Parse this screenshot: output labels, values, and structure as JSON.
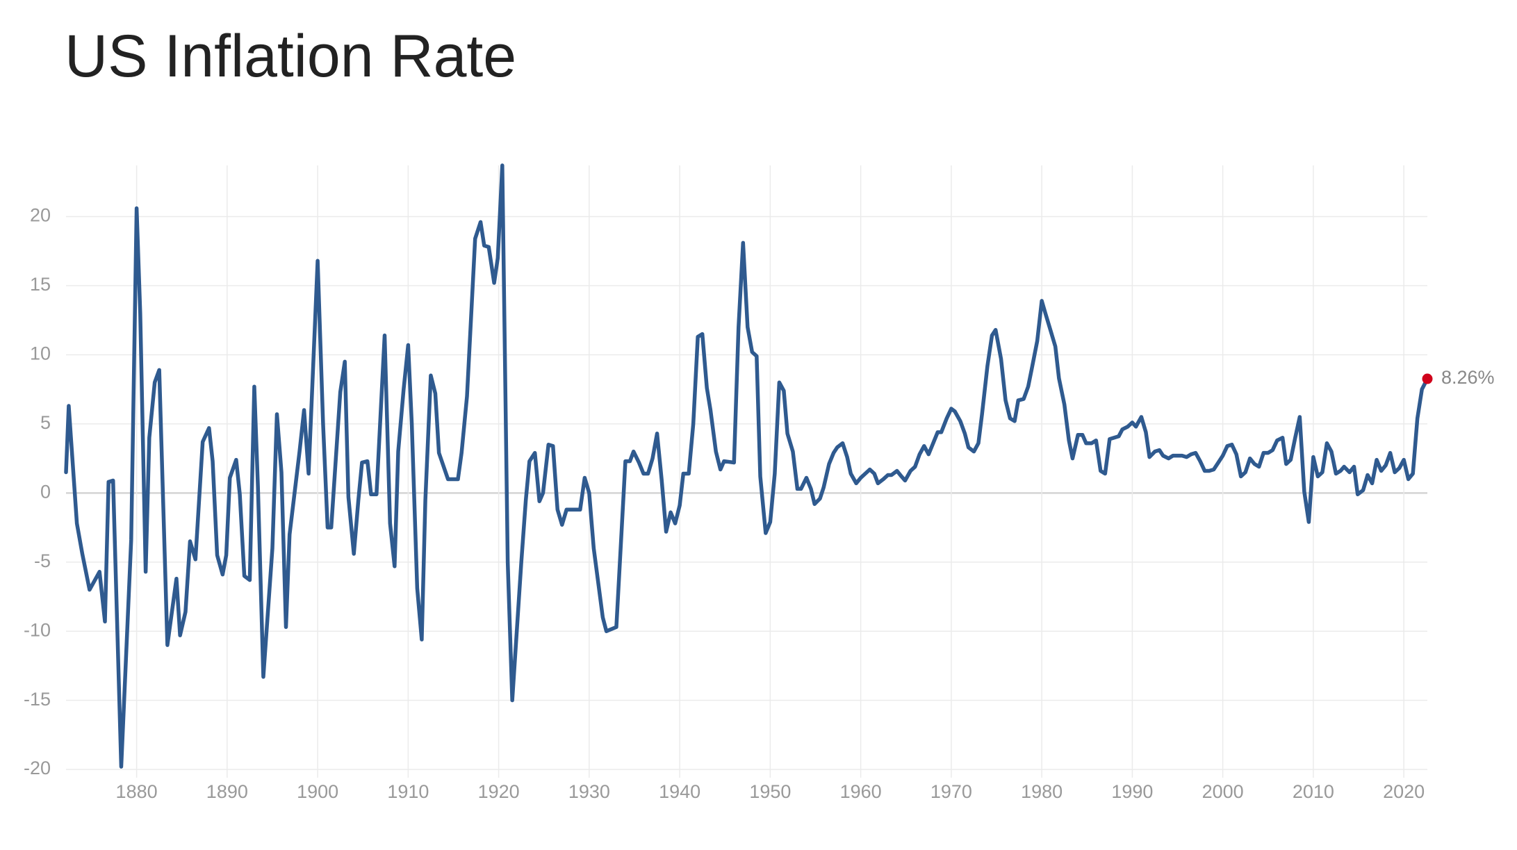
{
  "chart_data": {
    "type": "line",
    "title": "US Inflation Rate",
    "x": [
      1872.2,
      1872.5,
      1873.4,
      1874.0,
      1874.8,
      1875.9,
      1876.5,
      1876.9,
      1877.4,
      1878.3,
      1879.4,
      1880.0,
      1880.4,
      1881.0,
      1881.4,
      1882.0,
      1882.5,
      1883.4,
      1884.4,
      1884.8,
      1885.4,
      1885.9,
      1886.5,
      1887.3,
      1888.0,
      1888.4,
      1888.9,
      1889.5,
      1889.9,
      1890.3,
      1891.0,
      1891.4,
      1891.9,
      1892.5,
      1893.0,
      1893.4,
      1894.0,
      1895.0,
      1895.5,
      1896.0,
      1896.5,
      1896.9,
      1898.0,
      1898.5,
      1899.0,
      1900.0,
      1900.6,
      1901.1,
      1901.5,
      1902.5,
      1903.0,
      1903.4,
      1904.0,
      1904.5,
      1904.9,
      1905.5,
      1905.9,
      1906.5,
      1907.4,
      1908.0,
      1908.5,
      1908.9,
      1909.5,
      1910.0,
      1910.4,
      1911.0,
      1911.5,
      1911.9,
      1912.5,
      1913.0,
      1913.4,
      1914.4,
      1915.5,
      1915.9,
      1916.5,
      1917.4,
      1918.0,
      1918.4,
      1918.9,
      1919.5,
      1919.9,
      1920.4,
      1921.0,
      1921.5,
      1921.9,
      1922.5,
      1923.0,
      1923.4,
      1924.0,
      1924.5,
      1924.9,
      1925.5,
      1926.0,
      1926.5,
      1927.0,
      1927.5,
      1929.0,
      1929.5,
      1930.0,
      1930.5,
      1931.1,
      1931.5,
      1931.9,
      1933.0,
      1934.0,
      1934.5,
      1934.9,
      1935.5,
      1936.0,
      1936.5,
      1937.0,
      1937.5,
      1938.0,
      1938.5,
      1939.0,
      1939.5,
      1940.0,
      1940.4,
      1941.0,
      1941.5,
      1942.0,
      1942.5,
      1943.0,
      1943.4,
      1944.0,
      1944.5,
      1944.9,
      1946.0,
      1946.5,
      1947.0,
      1947.5,
      1948.0,
      1948.5,
      1948.9,
      1949.5,
      1950.0,
      1950.5,
      1951.0,
      1951.5,
      1951.9,
      1952.5,
      1953.0,
      1953.4,
      1954.0,
      1954.5,
      1954.9,
      1955.5,
      1955.9,
      1956.5,
      1957.0,
      1957.4,
      1958.0,
      1958.5,
      1958.9,
      1959.5,
      1960.0,
      1960.5,
      1961.0,
      1961.5,
      1961.9,
      1962.5,
      1963.0,
      1963.4,
      1964.0,
      1964.5,
      1964.9,
      1965.5,
      1966.0,
      1966.5,
      1967.0,
      1967.5,
      1968.0,
      1968.5,
      1968.9,
      1969.5,
      1970.0,
      1970.4,
      1971.0,
      1971.5,
      1971.9,
      1972.5,
      1973.0,
      1973.4,
      1974.0,
      1974.5,
      1974.9,
      1975.5,
      1976.0,
      1976.5,
      1977.0,
      1977.4,
      1978.0,
      1978.5,
      1978.9,
      1979.5,
      1980.0,
      1980.4,
      1981.0,
      1981.5,
      1981.9,
      1982.5,
      1983.0,
      1983.4,
      1984.0,
      1984.5,
      1984.9,
      1985.5,
      1986.0,
      1986.5,
      1987.0,
      1987.5,
      1988.0,
      1988.5,
      1988.9,
      1989.5,
      1990.0,
      1990.4,
      1991.0,
      1991.5,
      1991.9,
      1992.5,
      1993.0,
      1993.4,
      1994.0,
      1994.5,
      1995.5,
      1996.0,
      1996.5,
      1997.0,
      1997.5,
      1998.0,
      1998.5,
      1999.0,
      1999.5,
      2000.0,
      2000.5,
      2001.0,
      2001.5,
      2002.0,
      2002.5,
      2003.0,
      2003.5,
      2004.0,
      2004.5,
      2005.0,
      2005.5,
      2006.0,
      2006.6,
      2007.0,
      2007.5,
      2008.0,
      2008.5,
      2009.0,
      2009.5,
      2010.0,
      2010.5,
      2011.0,
      2011.5,
      2012.0,
      2012.5,
      2013.0,
      2013.4,
      2014.0,
      2014.5,
      2014.9,
      2015.5,
      2016.0,
      2016.5,
      2017.0,
      2017.5,
      2018.0,
      2018.5,
      2019.0,
      2019.5,
      2020.0,
      2020.5,
      2021.0,
      2021.5,
      2022.0,
      2022.6
    ],
    "values": [
      1.5,
      6.3,
      -2.2,
      -4.4,
      -7,
      -5.7,
      -9.3,
      0.8,
      0.9,
      -19.8,
      -3.4,
      20.6,
      13,
      -5.7,
      4,
      8,
      8.9,
      -11,
      -6.2,
      -10.3,
      -8.6,
      -3.5,
      -4.8,
      3.7,
      4.7,
      2.3,
      -4.5,
      -5.9,
      -4.5,
      1.1,
      2.4,
      -0.1,
      -6,
      -6.3,
      7.7,
      0.5,
      -13.3,
      -4,
      5.7,
      1.5,
      -9.7,
      -3,
      3,
      6,
      1.4,
      16.8,
      5,
      -2.5,
      -2.5,
      7.3,
      9.5,
      -0.3,
      -4.4,
      -0.5,
      2.2,
      2.3,
      -0.1,
      -0.1,
      11.4,
      -2.2,
      -5.3,
      3,
      7.5,
      10.7,
      5,
      -6.9,
      -10.6,
      -0.5,
      8.5,
      7.2,
      2.9,
      1,
      1,
      2.9,
      7,
      18.4,
      19.6,
      17.9,
      17.8,
      15.2,
      17,
      23.7,
      -5,
      -15,
      -11,
      -5,
      -0.5,
      2.3,
      2.9,
      -0.6,
      0,
      3.5,
      3.4,
      -1.2,
      -2.3,
      -1.2,
      -1.2,
      1.1,
      0,
      -4,
      -7,
      -9,
      -10,
      -9.7,
      2.3,
      2.3,
      3,
      2.2,
      1.4,
      1.4,
      2.5,
      4.3,
      1,
      -2.8,
      -1.4,
      -2.2,
      -0.9,
      1.4,
      1.4,
      5,
      11.3,
      11.5,
      7.6,
      6,
      3,
      1.7,
      2.3,
      2.2,
      12,
      18.1,
      12,
      10.2,
      9.9,
      1.2,
      -2.9,
      -2.1,
      1.4,
      8,
      7.4,
      4.3,
      3,
      0.3,
      0.3,
      1.1,
      0.3,
      -0.8,
      -0.4,
      0.4,
      2.1,
      2.9,
      3.3,
      3.6,
      2.6,
      1.4,
      0.7,
      1.1,
      1.4,
      1.7,
      1.4,
      0.7,
      1,
      1.3,
      1.3,
      1.6,
      1.2,
      0.9,
      1.6,
      1.9,
      2.8,
      3.4,
      2.8,
      3.6,
      4.4,
      4.4,
      5.4,
      6.1,
      5.9,
      5.2,
      4.3,
      3.3,
      3,
      3.6,
      5.7,
      9.2,
      11.4,
      11.8,
      9.7,
      6.7,
      5.4,
      5.2,
      6.7,
      6.8,
      7.7,
      9,
      11,
      13.9,
      13,
      11.7,
      10.6,
      8.3,
      6.4,
      3.8,
      2.5,
      4.2,
      4.2,
      3.6,
      3.6,
      3.8,
      1.6,
      1.4,
      3.9,
      4,
      4.1,
      4.6,
      4.8,
      5.1,
      4.8,
      5.5,
      4.4,
      2.6,
      3,
      3.1,
      2.7,
      2.5,
      2.7,
      2.7,
      2.6,
      2.8,
      2.9,
      2.3,
      1.6,
      1.6,
      1.7,
      2.2,
      2.7,
      3.4,
      3.5,
      2.8,
      1.2,
      1.5,
      2.5,
      2.1,
      1.9,
      2.9,
      2.9,
      3.1,
      3.8,
      4,
      2.1,
      2.4,
      4,
      5.5,
      0.1,
      -2.1,
      2.6,
      1.2,
      1.5,
      3.6,
      3,
      1.4,
      1.6,
      1.9,
      1.5,
      1.9,
      -0.1,
      0.2,
      1.3,
      0.7,
      2.4,
      1.6,
      2,
      2.9,
      1.5,
      1.8,
      2.4,
      1,
      1.4,
      5.4,
      7.5,
      8.26
    ],
    "color": "#2f5a8f",
    "end_marker_color": "#d0021b",
    "end_label": "8.26%",
    "xlim": [
      1872.2,
      2022.6
    ],
    "xticks": [
      1880,
      1890,
      1900,
      1910,
      1920,
      1930,
      1940,
      1950,
      1960,
      1970,
      1980,
      1990,
      2000,
      2010,
      2020
    ],
    "ylim": [
      -20.6,
      23.7
    ],
    "yticks": [
      -20,
      -15,
      -10,
      -5,
      0,
      5,
      10,
      15,
      20
    ],
    "grid": true
  }
}
